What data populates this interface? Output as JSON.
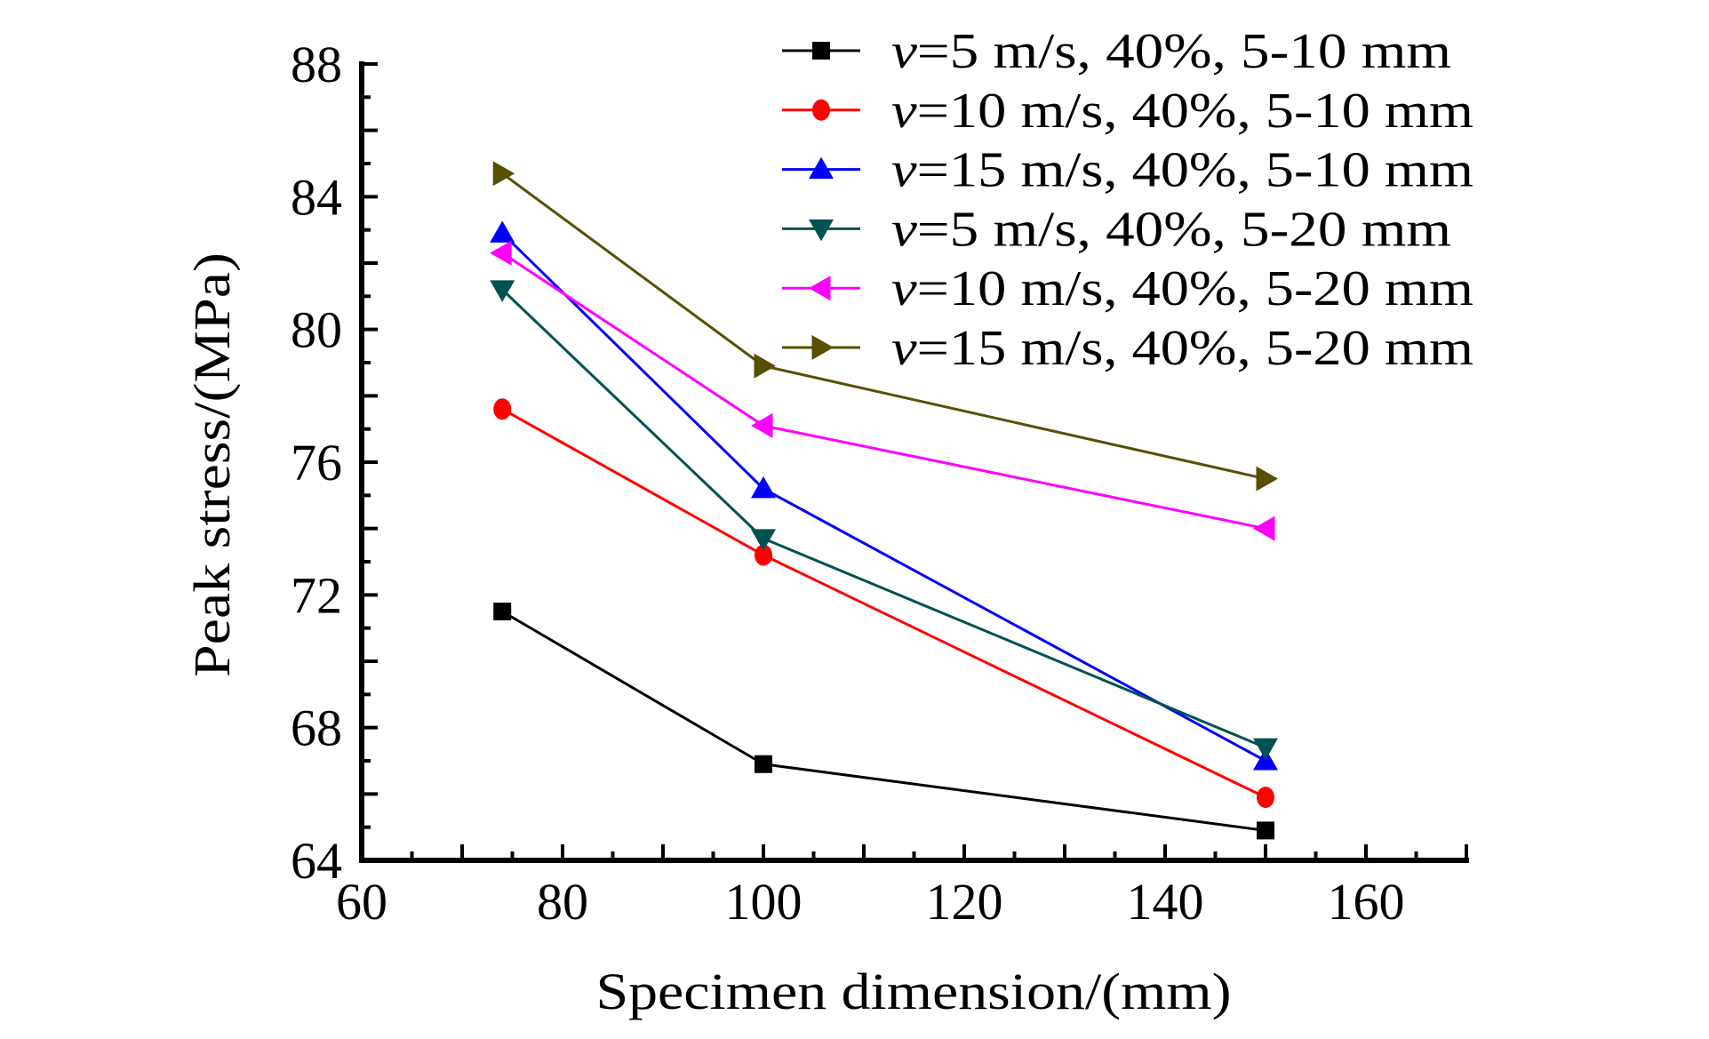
{
  "chart_data": {
    "type": "line",
    "title": "",
    "xlabel": "Specimen dimension/(mm)",
    "ylabel": "Peak stress/(MPa)",
    "xlim": [
      60,
      170
    ],
    "ylim": [
      64,
      88
    ],
    "xticks": [
      60,
      80,
      100,
      120,
      140,
      160
    ],
    "yticks": [
      64,
      68,
      72,
      76,
      80,
      84,
      88
    ],
    "grid": false,
    "legend_position": "top-right",
    "x": [
      74,
      100,
      150
    ],
    "series": [
      {
        "name": "v=5 m/s, 40%, 5-10 mm",
        "var": "v",
        "rest": "=5 m/s, 40%, 5-10 mm",
        "color": "#000000",
        "marker": "square",
        "values": [
          71.5,
          66.9,
          64.9
        ]
      },
      {
        "name": "v=10 m/s, 40%, 5-10 mm",
        "var": "v",
        "rest": "=10 m/s, 40%, 5-10 mm",
        "color": "#ff0000",
        "marker": "circle",
        "values": [
          77.6,
          73.2,
          65.9
        ]
      },
      {
        "name": "v=15 m/s, 40%, 5-10 mm",
        "var": "v",
        "rest": "=15 m/s, 40%, 5-10 mm",
        "color": "#0000ff",
        "marker": "triangle-up",
        "values": [
          82.9,
          75.2,
          67.0
        ]
      },
      {
        "name": "v=5 m/s, 40%, 5-20 mm",
        "var": "v",
        "rest": "=5 m/s, 40%, 5-20 mm",
        "color": "#005252",
        "marker": "triangle-down",
        "values": [
          81.2,
          73.7,
          67.4
        ]
      },
      {
        "name": "v=10 m/s, 40%, 5-20 mm",
        "var": "v",
        "rest": "=10 m/s, 40%, 5-20 mm",
        "color": "#ff00ff",
        "marker": "triangle-left",
        "values": [
          82.3,
          77.1,
          74.0
        ]
      },
      {
        "name": "v=15 m/s, 40%, 5-20 mm",
        "var": "v",
        "rest": "=15 m/s, 40%, 5-20 mm",
        "color": "#575000",
        "marker": "triangle-right",
        "values": [
          84.7,
          78.9,
          75.5
        ]
      }
    ]
  }
}
